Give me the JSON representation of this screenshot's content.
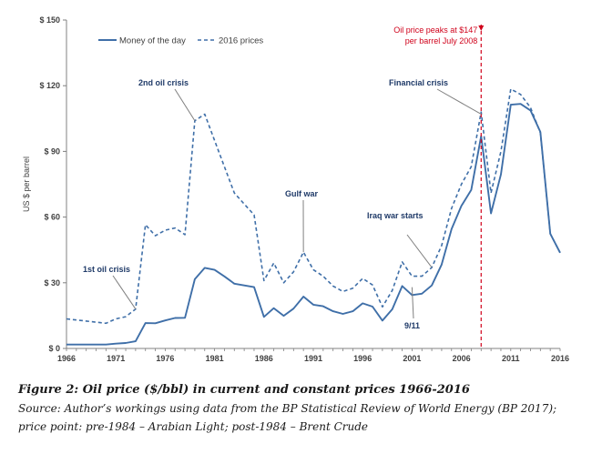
{
  "chart_data": {
    "type": "line",
    "ylabel": "US $ per barrel",
    "xlim": [
      1966,
      2016
    ],
    "ylim": [
      0,
      150
    ],
    "x_ticks": [
      1966,
      1971,
      1976,
      1981,
      1986,
      1991,
      1996,
      2001,
      2006,
      2011,
      2016
    ],
    "y_ticks": [
      {
        "value": 0,
        "label": "$ 0"
      },
      {
        "value": 30,
        "label": "$ 30"
      },
      {
        "value": 60,
        "label": "$ 60"
      },
      {
        "value": 90,
        "label": "$ 90"
      },
      {
        "value": 120,
        "label": "$ 120"
      },
      {
        "value": 150,
        "label": "$ 150"
      }
    ],
    "grid": false,
    "legend_position": "top-left",
    "x": [
      1966,
      1967,
      1968,
      1969,
      1970,
      1971,
      1972,
      1973,
      1974,
      1975,
      1976,
      1977,
      1978,
      1979,
      1980,
      1981,
      1982,
      1983,
      1984,
      1985,
      1986,
      1987,
      1988,
      1989,
      1990,
      1991,
      1992,
      1993,
      1994,
      1995,
      1996,
      1997,
      1998,
      1999,
      2000,
      2001,
      2002,
      2003,
      2004,
      2005,
      2006,
      2007,
      2008,
      2009,
      2010,
      2011,
      2012,
      2013,
      2014,
      2015,
      2016
    ],
    "series": [
      {
        "name": "Money of the day",
        "style": "solid",
        "color": "#3f6fa8",
        "values": [
          1.8,
          1.8,
          1.8,
          1.8,
          1.8,
          2.2,
          2.5,
          3.3,
          11.6,
          11.5,
          12.8,
          13.9,
          14.0,
          31.6,
          36.8,
          35.9,
          32.9,
          29.6,
          28.8,
          28.0,
          14.4,
          18.4,
          14.9,
          18.2,
          23.7,
          20.0,
          19.3,
          17.0,
          15.8,
          17.0,
          20.6,
          19.1,
          12.7,
          17.9,
          28.5,
          24.4,
          25.0,
          28.8,
          38.3,
          54.5,
          65.1,
          72.4,
          97.0,
          61.7,
          79.5,
          111.3,
          111.7,
          108.7,
          98.9,
          52.4,
          43.7
        ]
      },
      {
        "name": "2016 prices",
        "style": "dashed",
        "color": "#3f6fa8",
        "values": [
          13.5,
          13.0,
          12.5,
          12.0,
          11.5,
          13.5,
          14.5,
          18.0,
          56.5,
          51.5,
          54.0,
          55.0,
          52.0,
          104.0,
          107.0,
          95.0,
          83.0,
          71.0,
          66.0,
          61.0,
          31.0,
          39.0,
          30.0,
          35.0,
          44.0,
          36.0,
          33.0,
          28.5,
          26.0,
          27.5,
          32.0,
          29.0,
          19.0,
          26.5,
          39.5,
          33.0,
          33.0,
          37.0,
          47.0,
          64.0,
          75.0,
          83.0,
          108.0,
          71.0,
          90.0,
          118.5,
          116.0,
          110.0,
          98.5,
          52.4,
          43.7
        ]
      }
    ],
    "annotations": [
      {
        "text": "1st oil crisis",
        "x": 1973,
        "y": 18
      },
      {
        "text": "2nd oil crisis",
        "x": 1979,
        "y": 104
      },
      {
        "text": "Gulf war",
        "x": 1990,
        "y": 44
      },
      {
        "text": "Iraq war starts",
        "x": 2003,
        "y": 37
      },
      {
        "text": "9/11",
        "x": 2001,
        "y": 28
      },
      {
        "text": "Financial crisis",
        "x": 2008,
        "y": 107
      }
    ],
    "marker": {
      "x": 2008,
      "lines": [
        "Oil price peaks at $147",
        "per barrel July 2008"
      ],
      "color": "#d0021b"
    }
  },
  "caption": {
    "title": "Figure 2: Oil price ($/bbl) in current and constant prices 1966-2016",
    "lines": [
      "Source: Author’s workings using data from the BP Statistical Review of World Energy (BP 2017);",
      "price point: pre-1984 – Arabian Light; post-1984 – Brent Crude"
    ]
  }
}
